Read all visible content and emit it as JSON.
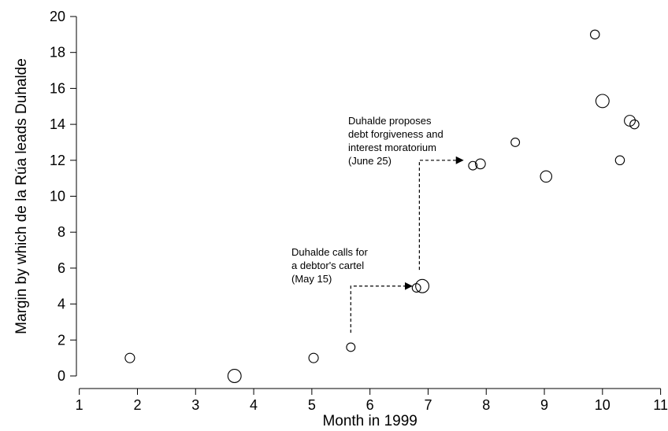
{
  "chart_data": {
    "type": "scatter",
    "title": "",
    "xlabel": "Month in 1999",
    "ylabel": "Margin by which de la Rúa leads Duhalde",
    "xlim": [
      0.95,
      11.1
    ],
    "ylim": [
      -0.7,
      20.7
    ],
    "xticks": [
      1,
      2,
      3,
      4,
      5,
      6,
      7,
      8,
      9,
      10,
      11
    ],
    "yticks": [
      0,
      2,
      4,
      6,
      8,
      10,
      12,
      14,
      16,
      18,
      20
    ],
    "grid": false,
    "marker": "hollow circle, size varies",
    "points": [
      {
        "x": 1.87,
        "y": 1.0,
        "size": 1.0
      },
      {
        "x": 3.67,
        "y": 0.0,
        "size": 1.4
      },
      {
        "x": 5.03,
        "y": 1.0,
        "size": 1.0
      },
      {
        "x": 5.67,
        "y": 1.6,
        "size": 0.9
      },
      {
        "x": 6.8,
        "y": 4.9,
        "size": 0.9
      },
      {
        "x": 6.9,
        "y": 5.0,
        "size": 1.4
      },
      {
        "x": 7.77,
        "y": 11.7,
        "size": 0.9
      },
      {
        "x": 7.9,
        "y": 11.8,
        "size": 1.05
      },
      {
        "x": 8.5,
        "y": 13.0,
        "size": 0.9
      },
      {
        "x": 9.03,
        "y": 11.1,
        "size": 1.2
      },
      {
        "x": 9.87,
        "y": 19.0,
        "size": 0.95
      },
      {
        "x": 10.0,
        "y": 15.3,
        "size": 1.4
      },
      {
        "x": 10.3,
        "y": 12.0,
        "size": 0.95
      },
      {
        "x": 10.47,
        "y": 14.2,
        "size": 1.15
      },
      {
        "x": 10.55,
        "y": 14.0,
        "size": 0.95
      }
    ],
    "annotations": [
      {
        "lines": [
          "Duhalde calls for",
          "a debtor's cartel",
          "(May 15)"
        ],
        "arrow_from": {
          "x": 5.67,
          "y": 2.4
        },
        "arrow_corner": {
          "x": 5.67,
          "y": 5.0
        },
        "arrow_to": {
          "x": 6.72,
          "y": 5.0
        }
      },
      {
        "lines": [
          "Duhalde proposes",
          "debt forgiveness and",
          "interest moratorium",
          "(June 25)"
        ],
        "arrow_from": {
          "x": 6.85,
          "y": 5.9
        },
        "arrow_corner": {
          "x": 6.85,
          "y": 12.0
        },
        "arrow_to": {
          "x": 7.6,
          "y": 12.0
        }
      }
    ]
  }
}
